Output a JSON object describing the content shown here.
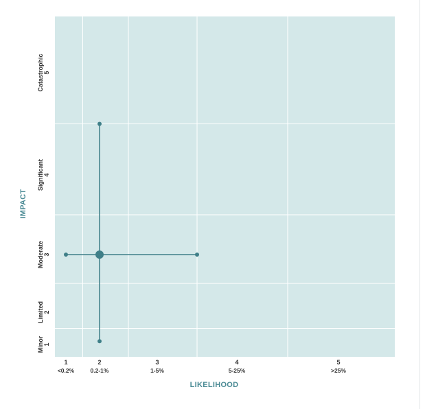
{
  "chart_data": {
    "type": "scatter",
    "title": "",
    "xlabel": "LIKELIHOOD",
    "ylabel": "IMPACT",
    "x_ticks": [
      {
        "level": 1,
        "label": "1",
        "sublabel": "<0.2%"
      },
      {
        "level": 2,
        "label": "2",
        "sublabel": "0.2-1%"
      },
      {
        "level": 3,
        "label": "3",
        "sublabel": "1-5%"
      },
      {
        "level": 4,
        "label": "4",
        "sublabel": "5-25%"
      },
      {
        "level": 5,
        "label": "5",
        "sublabel": ">25%"
      }
    ],
    "y_ticks": [
      {
        "level": 1,
        "label": "Minor",
        "num": "1"
      },
      {
        "level": 2,
        "label": "Limited",
        "num": "2"
      },
      {
        "level": 3,
        "label": "Moderate",
        "num": "3"
      },
      {
        "level": 4,
        "label": "Significant",
        "num": "4"
      },
      {
        "level": 5,
        "label": "Catastrophic",
        "num": "5"
      }
    ],
    "xlim": [
      0.5,
      5.5
    ],
    "ylim": [
      0.5,
      5.5
    ],
    "grid": true,
    "point": {
      "x": 2,
      "y": 3
    },
    "x_range": [
      1,
      3.5
    ],
    "y_range": [
      1.1,
      4.5
    ],
    "colors": {
      "plot_background": "#d4e8e9",
      "grid": "#ffffff",
      "marker": "#3f7f88",
      "axis_title": "#4a8a94"
    }
  }
}
